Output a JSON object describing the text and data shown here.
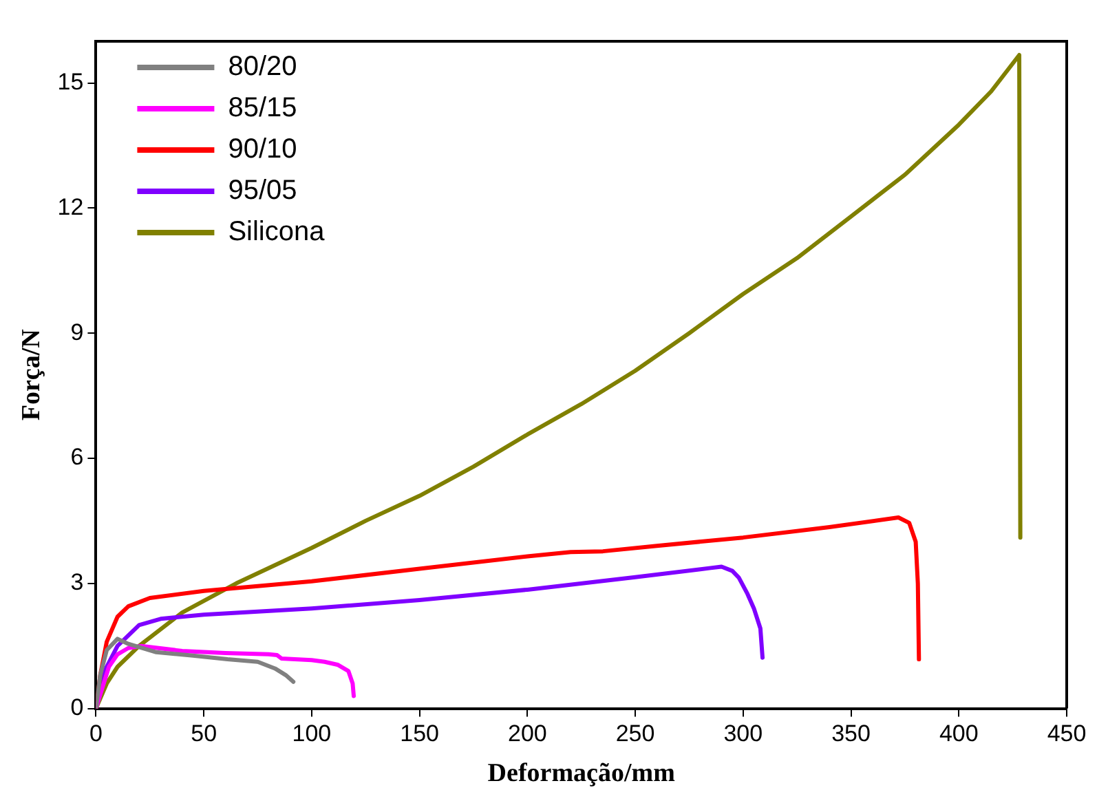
{
  "chart_data": {
    "type": "line",
    "xlabel": "Deformação/mm",
    "ylabel": "Força/N",
    "xlim": [
      0,
      450
    ],
    "ylim": [
      0,
      16
    ],
    "xticks": [
      0,
      50,
      100,
      150,
      200,
      250,
      300,
      350,
      400,
      450
    ],
    "yticks": [
      0,
      3,
      6,
      9,
      12,
      15
    ],
    "grid": false,
    "legend": "top left",
    "marker": "none",
    "line_style": "solid",
    "series": [
      {
        "name": "80/20",
        "color": "#808080",
        "x": [
          0,
          2,
          5,
          10,
          15,
          28,
          45,
          61,
          75,
          83,
          88,
          91.5
        ],
        "values": [
          0,
          0.8,
          1.4,
          1.67,
          1.55,
          1.35,
          1.27,
          1.18,
          1.12,
          0.96,
          0.8,
          0.64
        ]
      },
      {
        "name": "85/15",
        "color": "#ff00ff",
        "x": [
          0,
          3,
          6,
          10,
          15,
          21,
          40,
          60,
          80,
          84,
          86,
          100,
          106,
          112,
          117,
          119,
          119.5
        ],
        "values": [
          0,
          0.5,
          1.0,
          1.3,
          1.45,
          1.5,
          1.38,
          1.33,
          1.3,
          1.28,
          1.2,
          1.16,
          1.12,
          1.05,
          0.9,
          0.6,
          0.3
        ]
      },
      {
        "name": "90/10",
        "color": "#ff0000",
        "x": [
          0,
          2,
          5,
          10,
          15,
          25,
          50,
          100,
          150,
          200,
          220,
          235,
          260,
          300,
          340,
          372,
          377,
          380,
          381,
          381.5
        ],
        "values": [
          0,
          0.8,
          1.6,
          2.2,
          2.45,
          2.65,
          2.82,
          3.05,
          3.35,
          3.65,
          3.75,
          3.77,
          3.9,
          4.1,
          4.35,
          4.58,
          4.45,
          4.0,
          3.0,
          1.18
        ]
      },
      {
        "name": "95/05",
        "color": "#7f00ff",
        "x": [
          0,
          3,
          10,
          20,
          30,
          50,
          100,
          150,
          200,
          250,
          285,
          290,
          295,
          298,
          302,
          305,
          308,
          309
        ],
        "values": [
          0,
          0.8,
          1.5,
          2.0,
          2.15,
          2.25,
          2.4,
          2.6,
          2.85,
          3.15,
          3.37,
          3.4,
          3.3,
          3.14,
          2.75,
          2.4,
          1.92,
          1.22
        ]
      },
      {
        "name": "Silicona",
        "color": "#808000",
        "x": [
          0,
          5,
          10,
          20,
          40,
          65,
          100,
          125,
          150,
          175,
          200,
          225,
          250,
          275,
          300,
          325,
          350,
          375,
          400,
          415,
          428,
          428.5
        ],
        "values": [
          0,
          0.6,
          1.0,
          1.5,
          2.3,
          3.0,
          3.85,
          4.5,
          5.1,
          5.8,
          6.57,
          7.3,
          8.1,
          9.0,
          9.94,
          10.8,
          11.8,
          12.8,
          14.0,
          14.8,
          15.67,
          4.1
        ]
      }
    ]
  }
}
